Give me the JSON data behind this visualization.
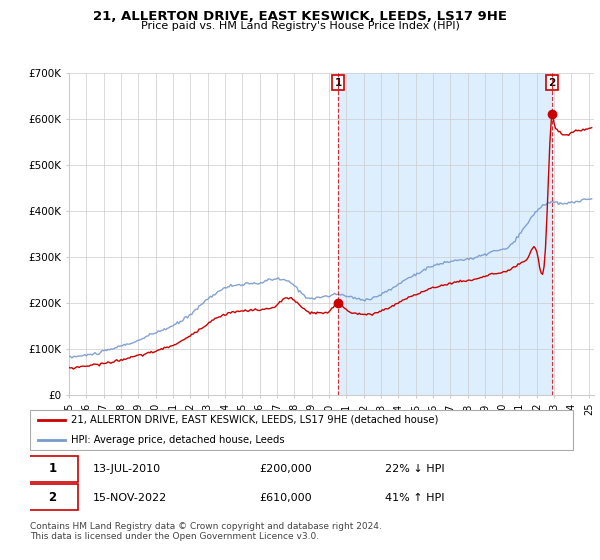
{
  "title": "21, ALLERTON DRIVE, EAST KESWICK, LEEDS, LS17 9HE",
  "subtitle": "Price paid vs. HM Land Registry's House Price Index (HPI)",
  "legend_label1": "21, ALLERTON DRIVE, EAST KESWICK, LEEDS, LS17 9HE (detached house)",
  "legend_label2": "HPI: Average price, detached house, Leeds",
  "footer1": "Contains HM Land Registry data © Crown copyright and database right 2024.",
  "footer2": "This data is licensed under the Open Government Licence v3.0.",
  "annotation1_date": "13-JUL-2010",
  "annotation1_price": "£200,000",
  "annotation1_hpi": "22% ↓ HPI",
  "annotation2_date": "15-NOV-2022",
  "annotation2_price": "£610,000",
  "annotation2_hpi": "41% ↑ HPI",
  "red_color": "#cc0000",
  "blue_color": "#7799cc",
  "shade_color": "#ddeeff",
  "grid_color": "#cccccc",
  "background_color": "#ffffff",
  "ylim": [
    0,
    700000
  ],
  "yticks": [
    0,
    100000,
    200000,
    300000,
    400000,
    500000,
    600000,
    700000
  ],
  "ytick_labels": [
    "£0",
    "£100K",
    "£200K",
    "£300K",
    "£400K",
    "£500K",
    "£600K",
    "£700K"
  ],
  "xlim_start": 1995.0,
  "xlim_end": 2025.3,
  "transaction1_x": 2010.54,
  "transaction1_y": 200000,
  "transaction2_x": 2022.88,
  "transaction2_y": 610000,
  "xtick_years": [
    1995,
    1996,
    1997,
    1998,
    1999,
    2000,
    2001,
    2002,
    2003,
    2004,
    2005,
    2006,
    2007,
    2008,
    2009,
    2010,
    2011,
    2012,
    2013,
    2014,
    2015,
    2016,
    2017,
    2018,
    2019,
    2020,
    2021,
    2022,
    2023,
    2024,
    2025
  ]
}
